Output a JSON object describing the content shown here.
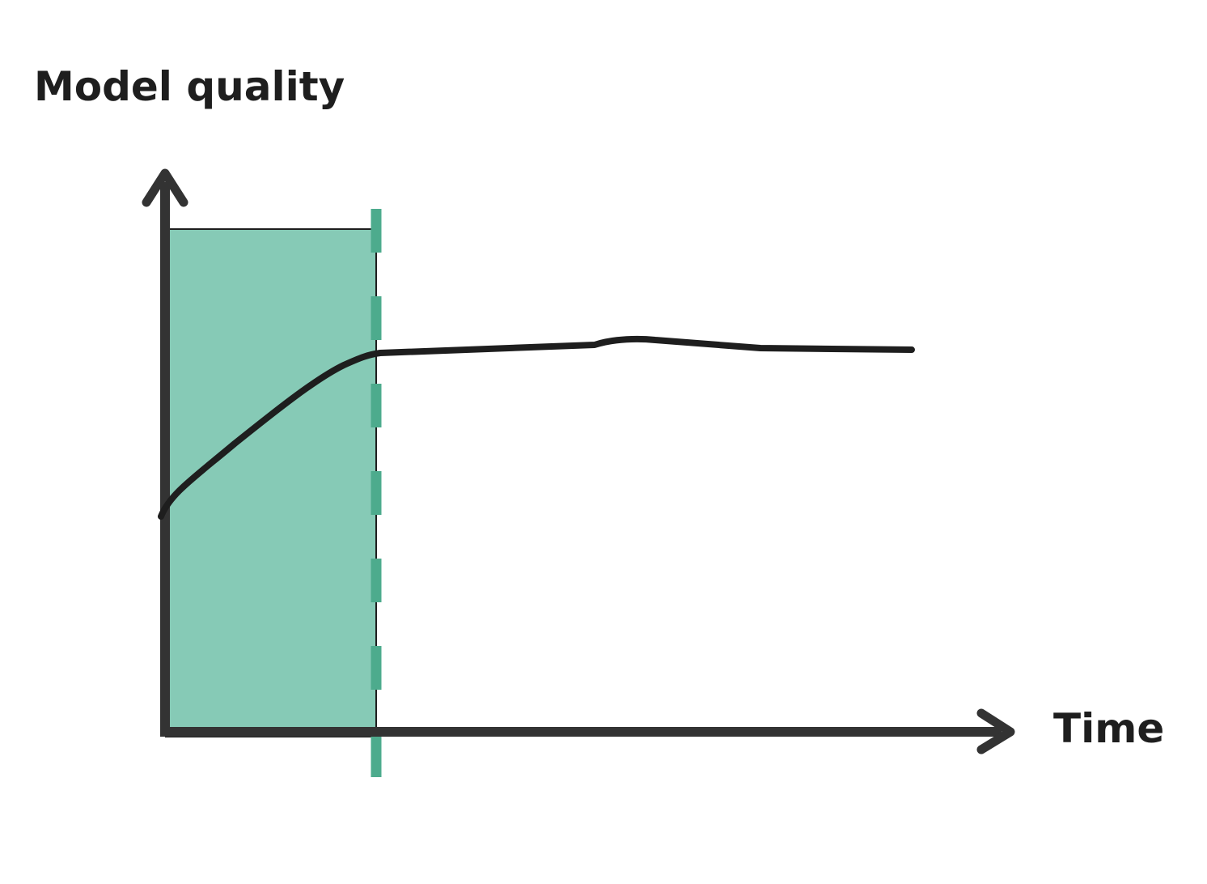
{
  "diagram": {
    "y_axis_label": "Model quality",
    "x_axis_label": "Time",
    "colors": {
      "axis": "#333333",
      "curve": "#1e1e1e",
      "shaded_region": "#86cab6",
      "dashed_line": "#4dab8d",
      "text": "#1e1e1e"
    },
    "curve_shape": "rises steeply at first, then plateaus",
    "shaded_region": "initial phase (from start until curve begins to plateau)"
  }
}
